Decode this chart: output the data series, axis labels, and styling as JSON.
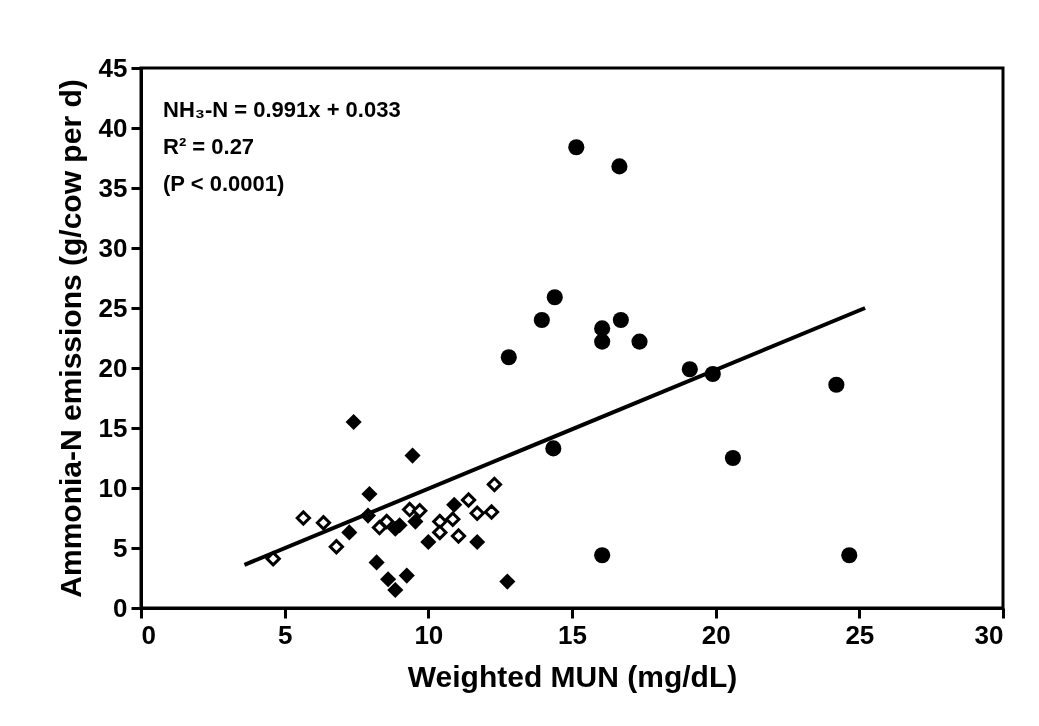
{
  "chart_data": {
    "type": "scatter",
    "xlabel": "Weighted MUN (mg/dL)",
    "ylabel": "Ammonia-N emissions (g/cow per d)",
    "annotations": [
      "NH₃-N = 0.991x + 0.033",
      "R² = 0.27",
      "(P < 0.0001)"
    ],
    "xlim": [
      0,
      30
    ],
    "ylim": [
      0,
      45
    ],
    "xticks": [
      0,
      5,
      10,
      15,
      20,
      25,
      30
    ],
    "yticks": [
      0,
      5,
      10,
      15,
      20,
      25,
      30,
      35,
      40,
      45
    ],
    "grid": false,
    "series": [
      {
        "marker": "circle",
        "color": "#000000",
        "x": [
          15.15,
          16.65,
          14.4,
          13.95,
          16.05,
          16.7,
          16.05,
          17.35,
          12.8,
          19.1,
          19.9,
          24.2,
          14.35,
          20.6,
          16.05,
          24.65
        ],
        "values": [
          38.4,
          36.8,
          25.9,
          24.0,
          23.3,
          24.0,
          22.2,
          22.2,
          20.9,
          19.9,
          19.5,
          18.6,
          13.3,
          12.5,
          4.4,
          4.4
        ]
      },
      {
        "marker": "diamond",
        "color": "#000000",
        "x": [
          7.4,
          9.45,
          7.95,
          7.9,
          7.25,
          8.85,
          9.0,
          9.55,
          10.9,
          10.0,
          11.7,
          8.2,
          8.6,
          8.85,
          9.25,
          12.75
        ],
        "values": [
          15.5,
          12.7,
          9.5,
          7.7,
          6.3,
          6.6,
          6.9,
          7.2,
          8.6,
          5.5,
          5.5,
          3.8,
          2.4,
          1.5,
          2.7,
          2.2
        ]
      },
      {
        "marker": "diamond",
        "color": "#ffffff",
        "x": [
          4.6,
          5.65,
          6.35,
          6.8,
          8.3,
          8.55,
          9.35,
          9.7,
          10.4,
          10.4,
          10.85,
          11.05,
          11.4,
          11.7,
          12.2,
          12.3
        ],
        "values": [
          4.1,
          7.5,
          7.1,
          5.1,
          6.7,
          7.2,
          8.2,
          8.1,
          7.2,
          6.3,
          7.4,
          6.0,
          9.0,
          7.9,
          8.0,
          10.3
        ]
      },
      {
        "type": "line",
        "color": "#000000",
        "x": [
          3.6,
          25.2
        ],
        "values": [
          3.6,
          25.0
        ]
      }
    ]
  }
}
